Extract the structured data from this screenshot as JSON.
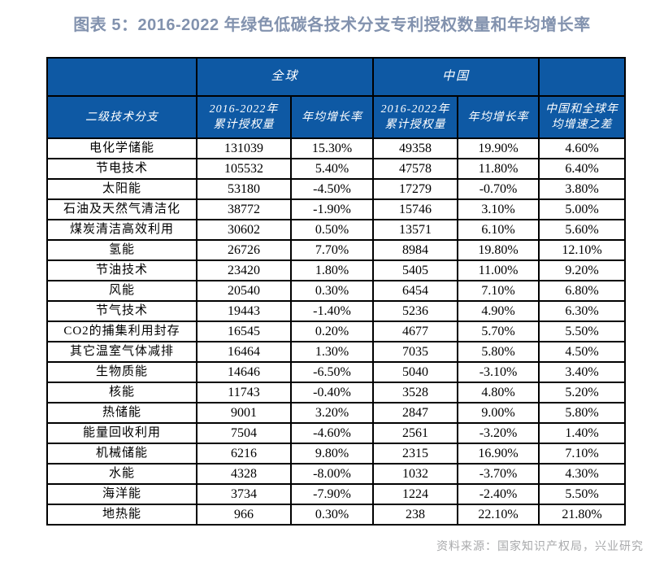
{
  "title": "图表 5：2016-2022 年绿色低碳各技术分支专利授权数量和年均增长率",
  "source": "资料来源：国家知识产权局，兴业研究",
  "colors": {
    "header_bg": "#0E59A4",
    "title": "#8292AE",
    "source": "#A8A9AB",
    "border": "#000000",
    "header_text": "#FFFFFF",
    "body_text": "#000000"
  },
  "table": {
    "group_row": {
      "left_blank": "",
      "global": "全球",
      "china": "中国",
      "right_blank": ""
    },
    "header_cells": [
      {
        "lines": [
          "二级技术分支"
        ]
      },
      {
        "lines": [
          "2016-2022年",
          "累计授权量"
        ]
      },
      {
        "lines": [
          "年均增长率"
        ]
      },
      {
        "lines": [
          "2016-2022年",
          "累计授权量"
        ]
      },
      {
        "lines": [
          "年均增长率"
        ]
      },
      {
        "lines": [
          "中国和全球年",
          "均增速之差"
        ]
      }
    ]
  },
  "chart_data": {
    "type": "table",
    "title": "2016-2022 年绿色低碳各技术分支专利授权数量和年均增长率",
    "categories": [
      "电化学储能",
      "节电技术",
      "太阳能",
      "石油及天然气清洁化",
      "煤炭清洁高效利用",
      "氢能",
      "节油技术",
      "风能",
      "节气技术",
      "CO2的捕集利用封存",
      "其它温室气体减排",
      "生物质能",
      "核能",
      "热储能",
      "能量回收利用",
      "机械储能",
      "水能",
      "海洋能",
      "地热能"
    ],
    "series": [
      {
        "name": "全球 2016-2022年累计授权量",
        "values": [
          131039,
          105532,
          53180,
          38772,
          30602,
          26726,
          23420,
          20540,
          19443,
          16545,
          16464,
          14646,
          11743,
          9001,
          7504,
          6216,
          4328,
          3734,
          966
        ]
      },
      {
        "name": "全球 年均增长率",
        "values": [
          "15.30%",
          "5.40%",
          "-4.50%",
          "-1.90%",
          "0.50%",
          "7.70%",
          "1.80%",
          "0.30%",
          "-1.40%",
          "0.20%",
          "1.30%",
          "-6.50%",
          "-0.40%",
          "3.20%",
          "-4.60%",
          "9.80%",
          "-8.00%",
          "-7.90%",
          "0.30%"
        ]
      },
      {
        "name": "中国 2016-2022年累计授权量",
        "values": [
          49358,
          47578,
          17279,
          15746,
          13571,
          8984,
          5405,
          6454,
          5236,
          4677,
          7035,
          5040,
          3528,
          2847,
          2561,
          2315,
          1032,
          1224,
          238
        ]
      },
      {
        "name": "中国 年均增长率",
        "values": [
          "19.90%",
          "11.80%",
          "-0.70%",
          "3.10%",
          "6.10%",
          "19.80%",
          "11.00%",
          "7.10%",
          "4.90%",
          "5.70%",
          "5.80%",
          "-3.10%",
          "4.80%",
          "9.00%",
          "-3.20%",
          "16.90%",
          "-3.70%",
          "-2.40%",
          "22.10%"
        ]
      },
      {
        "name": "中国和全球年均增速之差",
        "values": [
          "4.60%",
          "6.40%",
          "3.80%",
          "5.00%",
          "5.60%",
          "12.10%",
          "9.20%",
          "6.80%",
          "6.30%",
          "5.50%",
          "4.50%",
          "3.40%",
          "5.20%",
          "5.80%",
          "1.40%",
          "7.10%",
          "4.30%",
          "5.50%",
          "21.80%"
        ]
      }
    ]
  }
}
